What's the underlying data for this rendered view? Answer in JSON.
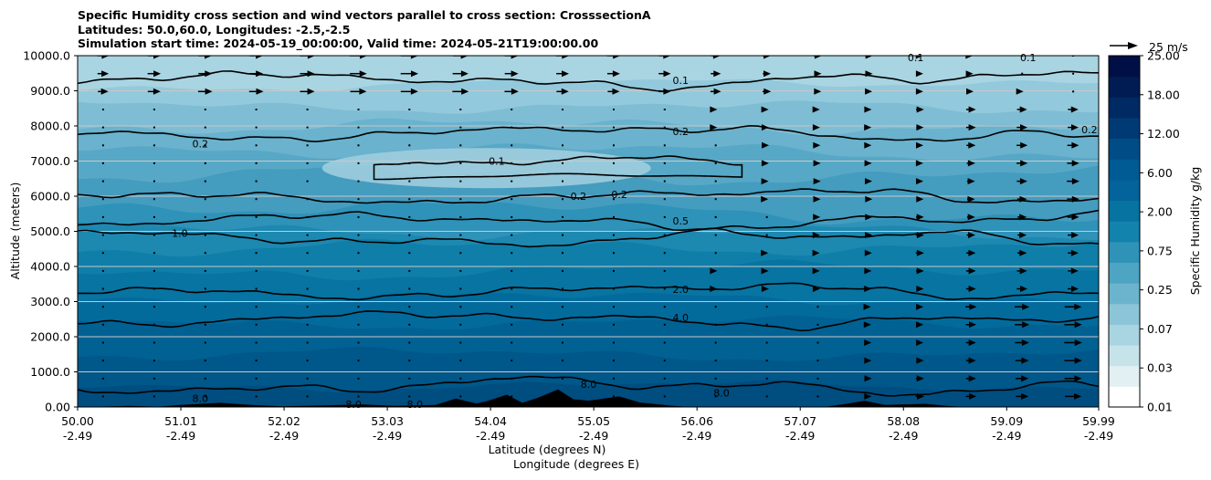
{
  "title": {
    "line1": "Specific Humidity cross section and wind vectors parallel to cross section: CrosssectionA",
    "line2": "Latitudes: 50.0,60.0, Longitudes: -2.5,-2.5",
    "line3": "Simulation start time: 2024-05-19_00:00:00, Valid time: 2024-05-21T19:00:00.00"
  },
  "chart_data": {
    "type": "contour-cross-section",
    "xlabel_lat": "Latitude (degrees N)",
    "xlabel_lon": "Longitude (degrees E)",
    "ylabel": "Altitude (meters)",
    "xlim": [
      50.0,
      59.99
    ],
    "ylim": [
      0,
      10000
    ],
    "x_ticks": [
      {
        "lat": "50.00",
        "lon": "-2.49",
        "value": 50.0
      },
      {
        "lat": "51.01",
        "lon": "-2.49",
        "value": 51.01
      },
      {
        "lat": "52.02",
        "lon": "-2.49",
        "value": 52.02
      },
      {
        "lat": "53.03",
        "lon": "-2.49",
        "value": 53.03
      },
      {
        "lat": "54.04",
        "lon": "-2.49",
        "value": 54.04
      },
      {
        "lat": "55.05",
        "lon": "-2.49",
        "value": 55.05
      },
      {
        "lat": "56.06",
        "lon": "-2.49",
        "value": 56.06
      },
      {
        "lat": "57.07",
        "lon": "-2.49",
        "value": 57.07
      },
      {
        "lat": "58.08",
        "lon": "-2.49",
        "value": 58.08
      },
      {
        "lat": "59.09",
        "lon": "-2.49",
        "value": 59.09
      },
      {
        "lat": "59.99",
        "lon": "-2.49",
        "value": 59.99
      }
    ],
    "y_ticks": [
      0,
      1000,
      2000,
      3000,
      4000,
      5000,
      6000,
      7000,
      8000,
      9000,
      10000
    ],
    "y_tick_labels": [
      "0.00",
      "1000.0",
      "2000.0",
      "3000.0",
      "4000.0",
      "5000.0",
      "6000.0",
      "7000.0",
      "8000.0",
      "9000.0",
      "10000.0"
    ],
    "grid": "horizontal",
    "contour_lines": [
      {
        "level": "0.1",
        "approx_altitude_m": 9300
      },
      {
        "level": "0.2",
        "approx_altitude_m": 7800
      },
      {
        "level": "0.1",
        "approx_altitude_m": 6900
      },
      {
        "level": "0.2",
        "approx_altitude_m": 6000
      },
      {
        "level": "0.5",
        "approx_altitude_m": 5300
      },
      {
        "level": "1.0",
        "approx_altitude_m": 4800
      },
      {
        "level": "2.0",
        "approx_altitude_m": 3300
      },
      {
        "level": "4.0",
        "approx_altitude_m": 2500
      },
      {
        "level": "8.0",
        "approx_altitude_m": 600
      }
    ],
    "contour_labels": [
      {
        "text": "0.1",
        "lat": 55.9,
        "alt": 9300
      },
      {
        "text": "0.1",
        "lat": 59.3,
        "alt": 9950
      },
      {
        "text": "0.1",
        "lat": 58.2,
        "alt": 9950
      },
      {
        "text": "0.2",
        "lat": 55.9,
        "alt": 7850
      },
      {
        "text": "0.2",
        "lat": 51.2,
        "alt": 7500
      },
      {
        "text": "0.2",
        "lat": 59.9,
        "alt": 7900
      },
      {
        "text": "0.1",
        "lat": 54.1,
        "alt": 7000
      },
      {
        "text": "0.2",
        "lat": 54.9,
        "alt": 6000
      },
      {
        "text": "0.2",
        "lat": 55.3,
        "alt": 6050
      },
      {
        "text": "0.5",
        "lat": 55.9,
        "alt": 5300
      },
      {
        "text": "1.0",
        "lat": 51.0,
        "alt": 4950
      },
      {
        "text": "2.0",
        "lat": 55.9,
        "alt": 3350
      },
      {
        "text": "4.0",
        "lat": 55.9,
        "alt": 2550
      },
      {
        "text": "8.0",
        "lat": 55.0,
        "alt": 650
      },
      {
        "text": "8.0",
        "lat": 56.3,
        "alt": 400
      },
      {
        "text": "8.0",
        "lat": 52.7,
        "alt": 80
      },
      {
        "text": "8.0",
        "lat": 53.3,
        "alt": 80
      },
      {
        "text": "8.0",
        "lat": 51.2,
        "alt": 250
      }
    ],
    "wind_reference": {
      "label": "25 m/s",
      "value": 25
    },
    "colorbar": {
      "label": "Specific Humidity g/kg",
      "levels": [
        "0.01",
        "0.03",
        "0.07",
        "0.25",
        "0.75",
        "2.00",
        "6.00",
        "12.00",
        "18.00",
        "25.00"
      ],
      "colors": [
        "#ffffff",
        "#e2f0f3",
        "#c6e3ea",
        "#a9d4e1",
        "#8cc5d8",
        "#6cb4cd",
        "#4ea4c3",
        "#2f93b8",
        "#1283ad",
        "#0673a1",
        "#03639a",
        "#005a93",
        "#004c87",
        "#003a75",
        "#002a63",
        "#001c53",
        "#000f45"
      ]
    }
  },
  "colors": {
    "terrain": "#000000",
    "contour": "#000000",
    "grid": "#c8c8c8"
  }
}
